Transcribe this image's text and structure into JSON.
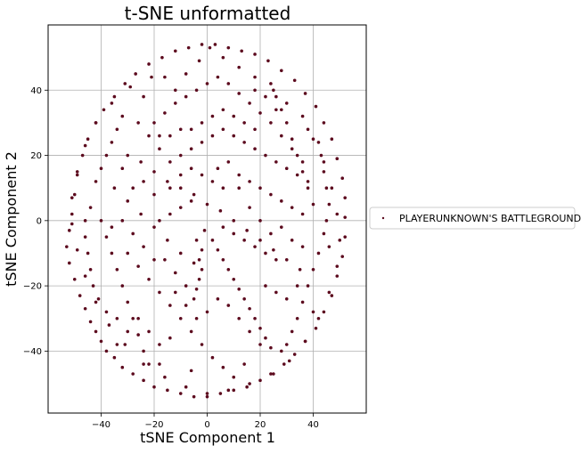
{
  "chart_data": {
    "type": "scatter",
    "title": "t-SNE unformatted",
    "xlabel": "tSNE Component 1",
    "ylabel": "tSNE Component 2",
    "xlim": [
      -60,
      60
    ],
    "ylim": [
      -59,
      60
    ],
    "xticks": [
      -40,
      -20,
      0,
      20,
      40
    ],
    "yticks": [
      -40,
      -20,
      0,
      20,
      40
    ],
    "grid": true,
    "legend": {
      "placement": "outside-right-center"
    },
    "series": [
      {
        "name": "PLAYERUNKNOWN'S BATTLEGROUNDS",
        "color": "#5c0a1e",
        "points": [
          [
            -12,
            40
          ],
          [
            -8,
            45
          ],
          [
            -3,
            49
          ],
          [
            1,
            53
          ],
          [
            6,
            50
          ],
          [
            12,
            47
          ],
          [
            18,
            44
          ],
          [
            25,
            40
          ],
          [
            30,
            36
          ],
          [
            36,
            32
          ],
          [
            40,
            25
          ],
          [
            44,
            18
          ],
          [
            47,
            10
          ],
          [
            49,
            2
          ],
          [
            50,
            -6
          ],
          [
            49,
            -14
          ],
          [
            46,
            -22
          ],
          [
            42,
            -30
          ],
          [
            37,
            -37
          ],
          [
            31,
            -43
          ],
          [
            24,
            -47
          ],
          [
            16,
            -50
          ],
          [
            8,
            -52
          ],
          [
            0,
            -53
          ],
          [
            -8,
            -51
          ],
          [
            -16,
            -48
          ],
          [
            -24,
            -44
          ],
          [
            -31,
            -38
          ],
          [
            -37,
            -32
          ],
          [
            -42,
            -25
          ],
          [
            -46,
            -17
          ],
          [
            -49,
            -9
          ],
          [
            -51,
            -1
          ],
          [
            -51,
            7
          ],
          [
            -49,
            15
          ],
          [
            -46,
            23
          ],
          [
            -42,
            30
          ],
          [
            -36,
            36
          ],
          [
            -29,
            41
          ],
          [
            -21,
            44
          ],
          [
            -52,
            -3
          ],
          [
            -53,
            -8
          ],
          [
            -52,
            -13
          ],
          [
            -50,
            -18
          ],
          [
            -48,
            -23
          ],
          [
            -46,
            -27
          ],
          [
            -44,
            -31
          ],
          [
            -42,
            -34
          ],
          [
            -40,
            -37
          ],
          [
            -38,
            -40
          ],
          [
            -35,
            -42
          ],
          [
            -32,
            -45
          ],
          [
            -28,
            -47
          ],
          [
            -24,
            -49
          ],
          [
            -20,
            -51
          ],
          [
            -15,
            -52
          ],
          [
            -10,
            -53
          ],
          [
            -5,
            -54
          ],
          [
            0,
            -54
          ],
          [
            5,
            -53
          ],
          [
            10,
            -52
          ],
          [
            15,
            -51
          ],
          [
            20,
            -49
          ],
          [
            25,
            -47
          ],
          [
            29,
            -44
          ],
          [
            33,
            -41
          ],
          [
            37,
            -37
          ],
          [
            41,
            -33
          ],
          [
            44,
            -28
          ],
          [
            47,
            -23
          ],
          [
            49,
            -17
          ],
          [
            51,
            -11
          ],
          [
            52,
            -5
          ],
          [
            52,
            1
          ],
          [
            52,
            7
          ],
          [
            51,
            13
          ],
          [
            49,
            19
          ],
          [
            47,
            25
          ],
          [
            44,
            30
          ],
          [
            41,
            35
          ],
          [
            37,
            39
          ],
          [
            33,
            43
          ],
          [
            28,
            46
          ],
          [
            23,
            49
          ],
          [
            18,
            51
          ],
          [
            13,
            52
          ],
          [
            8,
            53
          ],
          [
            3,
            54
          ],
          [
            -2,
            54
          ],
          [
            -7,
            53
          ],
          [
            -12,
            52
          ],
          [
            -17,
            50
          ],
          [
            -22,
            48
          ],
          [
            -27,
            45
          ],
          [
            -31,
            42
          ],
          [
            -35,
            38
          ],
          [
            -39,
            34
          ],
          [
            -42,
            30
          ],
          [
            -45,
            25
          ],
          [
            -47,
            20
          ],
          [
            -49,
            14
          ],
          [
            -50,
            8
          ],
          [
            -51,
            2
          ],
          [
            -30,
            20
          ],
          [
            -25,
            18
          ],
          [
            -20,
            15
          ],
          [
            -15,
            12
          ],
          [
            -10,
            10
          ],
          [
            -5,
            8
          ],
          [
            0,
            5
          ],
          [
            5,
            3
          ],
          [
            10,
            0
          ],
          [
            15,
            -3
          ],
          [
            20,
            -6
          ],
          [
            25,
            -9
          ],
          [
            30,
            -12
          ],
          [
            35,
            -15
          ],
          [
            -35,
            10
          ],
          [
            -30,
            6
          ],
          [
            -25,
            2
          ],
          [
            -20,
            -2
          ],
          [
            -15,
            -6
          ],
          [
            -10,
            -10
          ],
          [
            -5,
            -13
          ],
          [
            -2,
            -15
          ],
          [
            -3,
            -18
          ],
          [
            -4,
            -21
          ],
          [
            -5,
            -24
          ],
          [
            -3,
            -12
          ],
          [
            -2,
            -9
          ],
          [
            -4,
            -6
          ],
          [
            -1,
            -3
          ],
          [
            2,
            -6
          ],
          [
            4,
            -9
          ],
          [
            6,
            -12
          ],
          [
            8,
            -15
          ],
          [
            10,
            -18
          ],
          [
            12,
            -21
          ],
          [
            14,
            -24
          ],
          [
            16,
            -27
          ],
          [
            18,
            -30
          ],
          [
            20,
            -33
          ],
          [
            22,
            -36
          ],
          [
            24,
            -39
          ],
          [
            -40,
            0
          ],
          [
            -38,
            -5
          ],
          [
            -36,
            -10
          ],
          [
            -34,
            -15
          ],
          [
            -32,
            -20
          ],
          [
            -30,
            -25
          ],
          [
            -28,
            -30
          ],
          [
            -26,
            -35
          ],
          [
            -24,
            -40
          ],
          [
            -22,
            -44
          ],
          [
            40,
            5
          ],
          [
            38,
            10
          ],
          [
            36,
            15
          ],
          [
            34,
            20
          ],
          [
            32,
            25
          ],
          [
            30,
            30
          ],
          [
            28,
            34
          ],
          [
            26,
            38
          ],
          [
            24,
            42
          ],
          [
            -20,
            30
          ],
          [
            -16,
            33
          ],
          [
            -12,
            36
          ],
          [
            -8,
            38
          ],
          [
            -4,
            40
          ],
          [
            0,
            42
          ],
          [
            4,
            44
          ],
          [
            8,
            42
          ],
          [
            12,
            39
          ],
          [
            16,
            36
          ],
          [
            20,
            33
          ],
          [
            24,
            30
          ],
          [
            28,
            26
          ],
          [
            32,
            22
          ],
          [
            36,
            18
          ],
          [
            -30,
            -10
          ],
          [
            -26,
            -14
          ],
          [
            -22,
            -18
          ],
          [
            -18,
            -22
          ],
          [
            -14,
            -26
          ],
          [
            -10,
            -30
          ],
          [
            -6,
            -34
          ],
          [
            -2,
            -38
          ],
          [
            2,
            -42
          ],
          [
            6,
            -45
          ],
          [
            10,
            -48
          ],
          [
            -42,
            12
          ],
          [
            -40,
            16
          ],
          [
            -38,
            20
          ],
          [
            -36,
            24
          ],
          [
            -34,
            28
          ],
          [
            -32,
            32
          ],
          [
            42,
            -10
          ],
          [
            40,
            -15
          ],
          [
            38,
            -20
          ],
          [
            36,
            -25
          ],
          [
            34,
            -30
          ],
          [
            32,
            -34
          ],
          [
            30,
            -38
          ],
          [
            -10,
            20
          ],
          [
            -6,
            22
          ],
          [
            -2,
            24
          ],
          [
            2,
            26
          ],
          [
            6,
            28
          ],
          [
            10,
            26
          ],
          [
            14,
            24
          ],
          [
            18,
            22
          ],
          [
            22,
            20
          ],
          [
            26,
            18
          ],
          [
            30,
            16
          ],
          [
            34,
            14
          ],
          [
            38,
            12
          ],
          [
            -18,
            0
          ],
          [
            -14,
            2
          ],
          [
            -10,
            4
          ],
          [
            -6,
            6
          ],
          [
            6,
            -2
          ],
          [
            10,
            -4
          ],
          [
            14,
            -6
          ],
          [
            18,
            -8
          ],
          [
            22,
            -10
          ],
          [
            26,
            -12
          ],
          [
            -26,
            30
          ],
          [
            -22,
            26
          ],
          [
            -18,
            22
          ],
          [
            -14,
            18
          ],
          [
            45,
            0
          ],
          [
            46,
            5
          ],
          [
            45,
            10
          ],
          [
            44,
            15
          ],
          [
            43,
            20
          ],
          [
            42,
            24
          ],
          [
            38,
            28
          ],
          [
            -46,
            -5
          ],
          [
            -45,
            -10
          ],
          [
            -44,
            -15
          ],
          [
            -43,
            -20
          ],
          [
            -41,
            -24
          ],
          [
            -38,
            -28
          ],
          [
            -34,
            -30
          ],
          [
            12,
            10
          ],
          [
            16,
            12
          ],
          [
            20,
            10
          ],
          [
            24,
            8
          ],
          [
            28,
            6
          ],
          [
            32,
            4
          ],
          [
            36,
            2
          ],
          [
            -28,
            10
          ],
          [
            -24,
            12
          ],
          [
            -20,
            8
          ],
          [
            -16,
            -12
          ],
          [
            -12,
            -16
          ],
          [
            -8,
            -20
          ],
          [
            4,
            16
          ],
          [
            8,
            18
          ],
          [
            12,
            14
          ],
          [
            16,
            4
          ],
          [
            20,
            0
          ],
          [
            24,
            -4
          ],
          [
            28,
            -2
          ],
          [
            32,
            -6
          ],
          [
            36,
            -8
          ],
          [
            -36,
            -2
          ],
          [
            -32,
            0
          ],
          [
            -28,
            -4
          ],
          [
            -24,
            -8
          ],
          [
            -20,
            -12
          ],
          [
            2,
            32
          ],
          [
            -2,
            30
          ],
          [
            -6,
            28
          ],
          [
            -10,
            28
          ],
          [
            -14,
            26
          ],
          [
            -18,
            26
          ],
          [
            6,
            34
          ],
          [
            10,
            32
          ],
          [
            14,
            30
          ],
          [
            18,
            28
          ],
          [
            22,
            -20
          ],
          [
            26,
            -22
          ],
          [
            30,
            -24
          ],
          [
            34,
            -20
          ],
          [
            -14,
            -36
          ],
          [
            -18,
            -38
          ],
          [
            -22,
            -34
          ],
          [
            -26,
            -30
          ],
          [
            -30,
            -34
          ],
          [
            -34,
            -38
          ],
          [
            4,
            -24
          ],
          [
            8,
            -26
          ],
          [
            12,
            -30
          ],
          [
            16,
            -34
          ],
          [
            20,
            -38
          ],
          [
            0,
            -28
          ],
          [
            -4,
            -30
          ],
          [
            -8,
            -26
          ],
          [
            -12,
            -22
          ],
          [
            6,
            10
          ],
          [
            2,
            12
          ],
          [
            -2,
            14
          ],
          [
            -6,
            16
          ],
          [
            -10,
            14
          ],
          [
            -14,
            10
          ],
          [
            18,
            40
          ],
          [
            22,
            38
          ],
          [
            26,
            34
          ],
          [
            -16,
            44
          ],
          [
            -24,
            38
          ],
          [
            -32,
            16
          ],
          [
            -44,
            4
          ],
          [
            -46,
            0
          ],
          [
            44,
            -4
          ],
          [
            46,
            -8
          ],
          [
            40,
            -28
          ],
          [
            28,
            -40
          ],
          [
            14,
            -44
          ],
          [
            -6,
            -46
          ],
          [
            -18,
            -44
          ]
        ]
      }
    ]
  }
}
